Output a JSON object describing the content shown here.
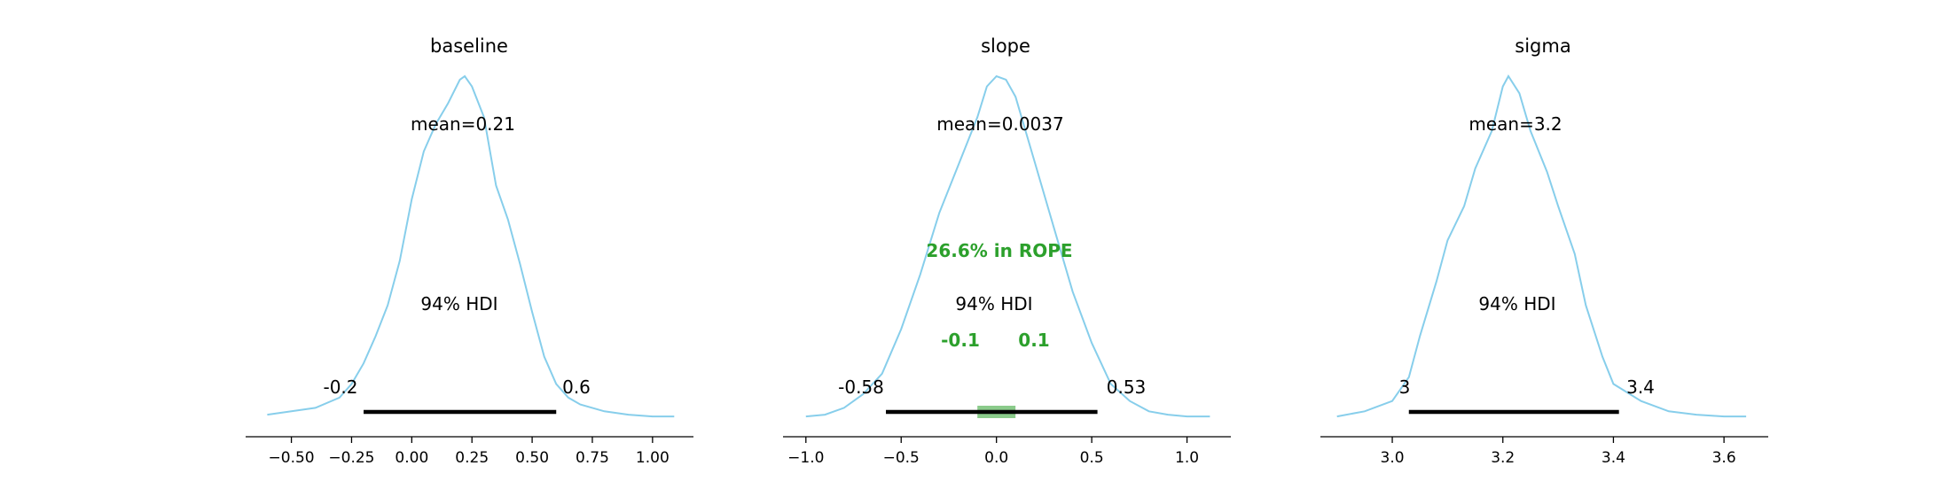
{
  "colors": {
    "curve": "#87ceeb",
    "hdi_bar": "#000000",
    "rope_band": "#2ca02c",
    "rope_text": "#2ca02c",
    "axis": "#000000",
    "background": "#ffffff"
  },
  "chart_data": [
    {
      "type": "line",
      "title": "baseline",
      "mean_label": "mean=0.21",
      "hdi_label": "94% HDI",
      "hdi_low_label": "-0.2",
      "hdi_high_label": "0.6",
      "hdi": [
        -0.2,
        0.6
      ],
      "xlim": [
        -0.69,
        1.17
      ],
      "xticks": [
        -0.5,
        -0.25,
        0.0,
        0.25,
        0.5,
        0.75,
        1.0
      ],
      "xtick_labels": [
        "−0.50",
        "−0.25",
        "0.00",
        "0.25",
        "0.50",
        "0.75",
        "1.00"
      ],
      "density": {
        "x": [
          -0.6,
          -0.5,
          -0.4,
          -0.3,
          -0.25,
          -0.2,
          -0.15,
          -0.1,
          -0.05,
          0.0,
          0.05,
          0.1,
          0.15,
          0.2,
          0.22,
          0.25,
          0.3,
          0.35,
          0.4,
          0.45,
          0.5,
          0.55,
          0.6,
          0.65,
          0.7,
          0.8,
          0.9,
          1.0,
          1.09
        ],
        "y": [
          0.01,
          0.02,
          0.03,
          0.06,
          0.1,
          0.16,
          0.24,
          0.33,
          0.46,
          0.64,
          0.78,
          0.86,
          0.92,
          0.99,
          1.0,
          0.97,
          0.88,
          0.68,
          0.58,
          0.45,
          0.31,
          0.18,
          0.1,
          0.06,
          0.04,
          0.02,
          0.01,
          0.005,
          0.005
        ]
      }
    },
    {
      "type": "line",
      "title": "slope",
      "mean_label": "mean=0.0037",
      "hdi_label": "94% HDI",
      "hdi_low_label": "-0.58",
      "hdi_high_label": "0.53",
      "hdi": [
        -0.58,
        0.53
      ],
      "rope": [
        -0.1,
        0.1
      ],
      "rope_label": "26.6% in ROPE",
      "rope_low_label": "-0.1",
      "rope_high_label": "0.1",
      "xlim": [
        -1.12,
        1.23
      ],
      "xticks": [
        -1.0,
        -0.5,
        0.0,
        0.5,
        1.0
      ],
      "xtick_labels": [
        "−1.0",
        "−0.5",
        "0.0",
        "0.5",
        "1.0"
      ],
      "density": {
        "x": [
          -1.0,
          -0.9,
          -0.8,
          -0.7,
          -0.6,
          -0.5,
          -0.4,
          -0.3,
          -0.2,
          -0.1,
          -0.05,
          0.0,
          0.05,
          0.1,
          0.2,
          0.3,
          0.4,
          0.5,
          0.6,
          0.7,
          0.8,
          0.9,
          1.0,
          1.12
        ],
        "y": [
          0.005,
          0.01,
          0.03,
          0.07,
          0.13,
          0.26,
          0.42,
          0.6,
          0.74,
          0.88,
          0.97,
          1.0,
          0.99,
          0.94,
          0.75,
          0.56,
          0.37,
          0.22,
          0.1,
          0.05,
          0.02,
          0.01,
          0.005,
          0.005
        ]
      }
    },
    {
      "type": "line",
      "title": "sigma",
      "mean_label": "mean=3.2",
      "hdi_label": "94% HDI",
      "hdi_low_label": "3",
      "hdi_high_label": "3.4",
      "hdi": [
        3.03,
        3.41
      ],
      "xlim": [
        2.87,
        3.68
      ],
      "xticks": [
        3.0,
        3.2,
        3.4,
        3.6
      ],
      "xtick_labels": [
        "3.0",
        "3.2",
        "3.4",
        "3.6"
      ],
      "density": {
        "x": [
          2.9,
          2.95,
          3.0,
          3.03,
          3.05,
          3.08,
          3.1,
          3.13,
          3.15,
          3.18,
          3.2,
          3.21,
          3.23,
          3.25,
          3.28,
          3.3,
          3.33,
          3.35,
          3.38,
          3.4,
          3.45,
          3.5,
          3.55,
          3.6,
          3.64
        ],
        "y": [
          0.005,
          0.02,
          0.05,
          0.12,
          0.24,
          0.4,
          0.52,
          0.62,
          0.73,
          0.84,
          0.97,
          1.0,
          0.95,
          0.84,
          0.72,
          0.62,
          0.48,
          0.33,
          0.18,
          0.1,
          0.05,
          0.02,
          0.01,
          0.005,
          0.005
        ]
      }
    }
  ]
}
